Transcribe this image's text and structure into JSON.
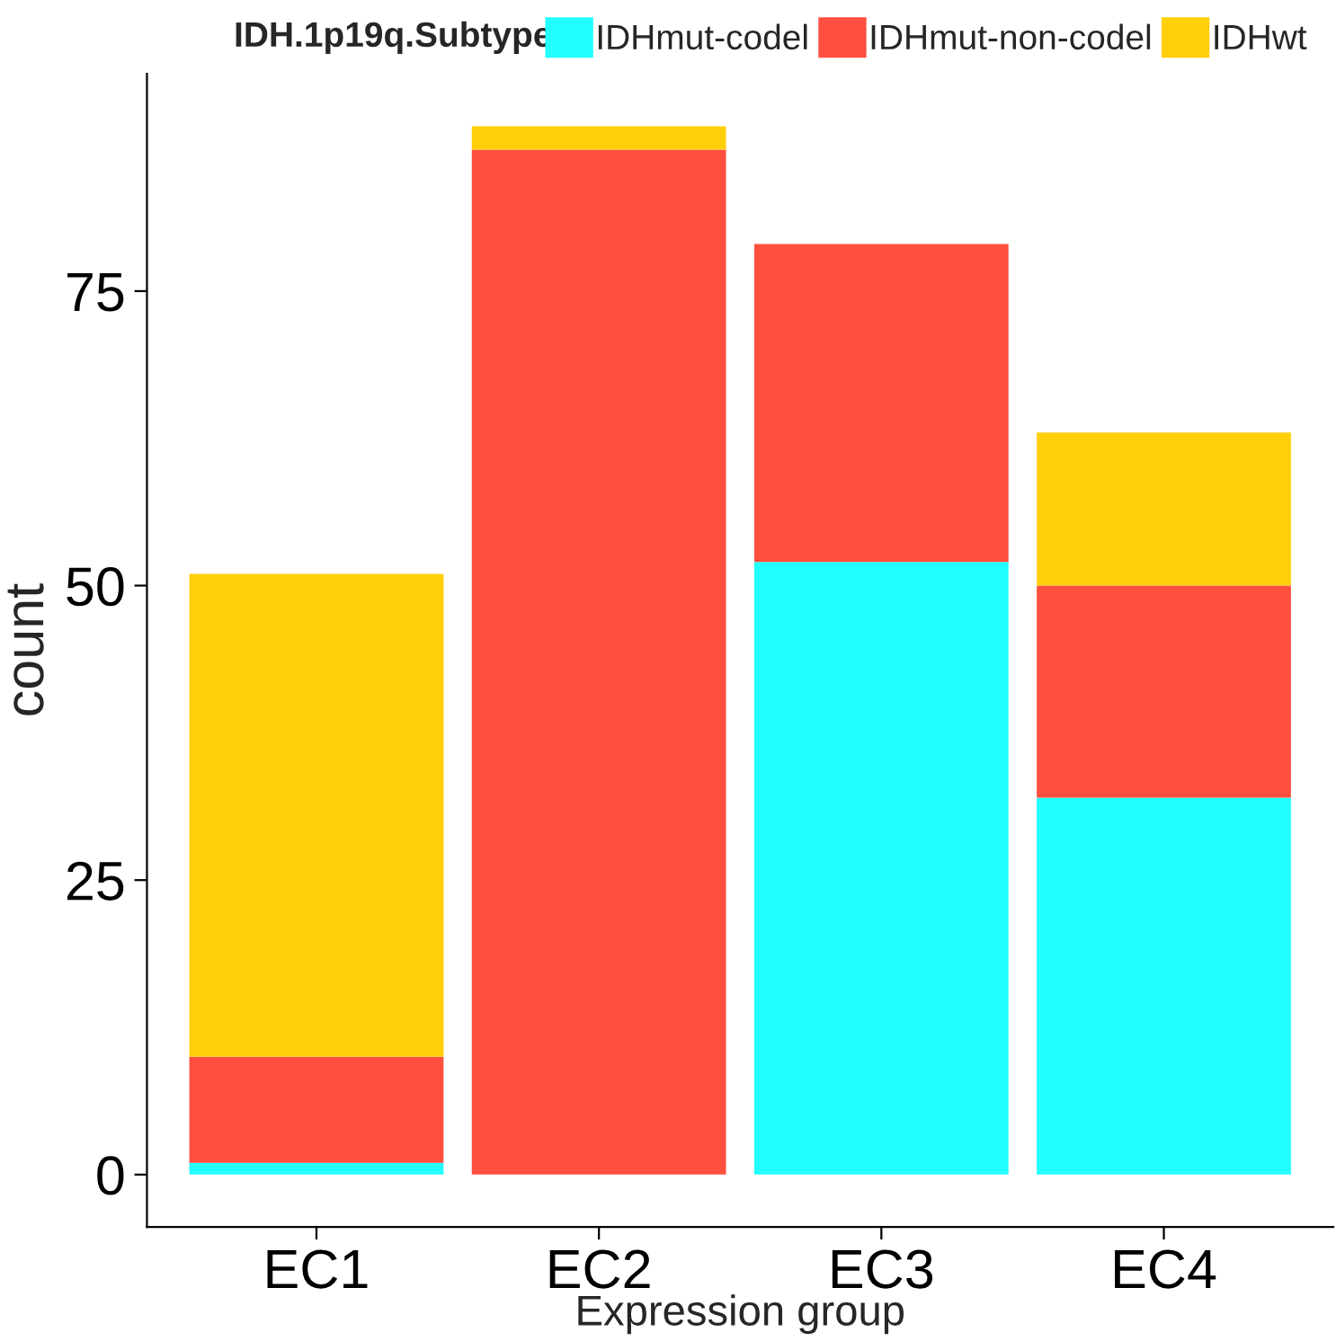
{
  "chart_data": {
    "type": "bar",
    "stacked": true,
    "xlabel": "Expression group",
    "ylabel": "count",
    "legend_title": "IDH.1p19q.Subtype",
    "legend": "top",
    "categories": [
      "EC1",
      "EC2",
      "EC3",
      "EC4"
    ],
    "series": [
      {
        "name": "IDHmut-codel",
        "color": "#22ffff",
        "values": [
          1,
          0,
          52,
          32
        ]
      },
      {
        "name": "IDHmut-non-codel",
        "color": "#ff4f3f",
        "values": [
          9,
          87,
          27,
          18
        ]
      },
      {
        "name": "IDHwt",
        "color": "#ffcf0b",
        "values": [
          41,
          2,
          0,
          13
        ]
      }
    ],
    "ylim": [
      -4.45,
      93.45
    ],
    "yticks": [
      0,
      25,
      50,
      75
    ],
    "grid": false
  }
}
